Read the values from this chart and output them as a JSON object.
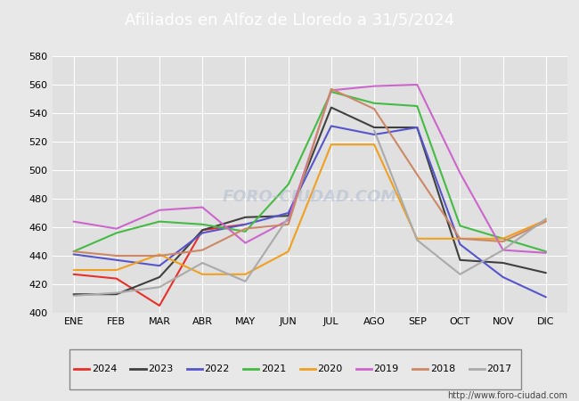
{
  "title": "Afiliados en Alfoz de Lloredo a 31/5/2024",
  "ylim": [
    400,
    580
  ],
  "yticks": [
    400,
    420,
    440,
    460,
    480,
    500,
    520,
    540,
    560,
    580
  ],
  "months": [
    "ENE",
    "FEB",
    "MAR",
    "ABR",
    "MAY",
    "JUN",
    "JUL",
    "AGO",
    "SEP",
    "OCT",
    "NOV",
    "DIC"
  ],
  "series": {
    "2024": {
      "color": "#e8302a",
      "data": [
        427,
        424,
        405,
        458,
        462,
        null,
        null,
        null,
        null,
        null,
        null,
        null
      ]
    },
    "2023": {
      "color": "#404040",
      "data": [
        413,
        413,
        425,
        458,
        467,
        468,
        544,
        530,
        530,
        437,
        435,
        428
      ]
    },
    "2022": {
      "color": "#5555cc",
      "data": [
        441,
        437,
        433,
        456,
        462,
        470,
        531,
        525,
        530,
        448,
        425,
        411
      ]
    },
    "2021": {
      "color": "#44bb44",
      "data": [
        443,
        456,
        464,
        462,
        457,
        490,
        555,
        547,
        545,
        461,
        452,
        443
      ]
    },
    "2020": {
      "color": "#f0a020",
      "data": [
        430,
        430,
        441,
        427,
        427,
        443,
        518,
        518,
        452,
        452,
        452,
        465
      ]
    },
    "2019": {
      "color": "#cc66cc",
      "data": [
        464,
        459,
        472,
        474,
        449,
        465,
        556,
        559,
        560,
        498,
        444,
        442
      ]
    },
    "2018": {
      "color": "#cc8866",
      "data": [
        443,
        440,
        440,
        444,
        459,
        462,
        557,
        543,
        497,
        452,
        450,
        464
      ]
    },
    "2017": {
      "color": "#aaaaaa",
      "data": [
        412,
        414,
        418,
        435,
        422,
        467,
        null,
        528,
        451,
        427,
        444,
        466
      ]
    }
  },
  "legend_order": [
    "2024",
    "2023",
    "2022",
    "2021",
    "2020",
    "2019",
    "2018",
    "2017"
  ],
  "fig_bg_color": "#e8e8e8",
  "plot_bg_color": "#e0e0e0",
  "title_bg_color": "#4472c4",
  "title_color": "#ffffff",
  "watermark_text": "FORO-CIUDAD.COM",
  "watermark_url": "http://www.foro-ciudad.com",
  "grid_color": "#ffffff",
  "title_fontsize": 13,
  "tick_fontsize": 8,
  "legend_fontsize": 8,
  "line_width": 1.5
}
